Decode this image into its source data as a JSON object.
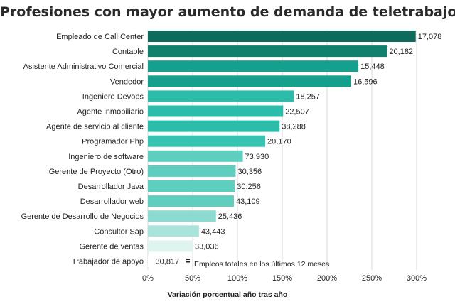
{
  "chart_data": {
    "type": "bar",
    "orientation": "horizontal",
    "title": "Profesiones con mayor aumento de demanda de teletrabajo",
    "xlabel": "Variación porcentual año tras año",
    "ylabel": "",
    "xlim": [
      0,
      300
    ],
    "x_ticks": [
      "0%",
      "50%",
      "100%",
      "150%",
      "200%",
      "250%",
      "300%"
    ],
    "grid": true,
    "bar_annotation_note": "Empleos totales en los últimos 12 meses",
    "categories": [
      "Empleado de Call Center",
      "Contable",
      "Asistente Administrativo Comercial",
      "Vendedor",
      "Ingeniero Devops",
      "Agente inmobiliario",
      "Agente de servicio al cliente",
      "Programador Php",
      "Ingeniero de software",
      "Gerente de Proyecto (Otro)",
      "Desarrollador Java",
      "Desarrollador web",
      "Gerente de Desarrollo de Negocios",
      "Consultor Sap",
      "Gerente de ventas",
      "Trabajador de apoyo"
    ],
    "values": [
      299,
      267,
      235,
      227,
      163,
      151,
      147,
      131,
      106,
      98,
      97,
      96,
      76,
      57,
      50,
      6
    ],
    "value_labels": [
      "17,078",
      "20,182",
      "15,448",
      "16,596",
      "18,257",
      "22,507",
      "38,288",
      "20,170",
      "73,930",
      "30,356",
      "30,256",
      "43,109",
      "25,436",
      "43,443",
      "33,036",
      "30,817"
    ],
    "bar_colors": [
      "#0d6b5c",
      "#11806d",
      "#15a08e",
      "#15a08e",
      "#2bbcaa",
      "#2bbcaa",
      "#2bbcaa",
      "#38c2b1",
      "#5ecebf",
      "#5ecebf",
      "#5ecebf",
      "#5ecebf",
      "#8cdbd0",
      "#a9e4dc",
      "#dff4ef",
      "#ffffff"
    ]
  }
}
